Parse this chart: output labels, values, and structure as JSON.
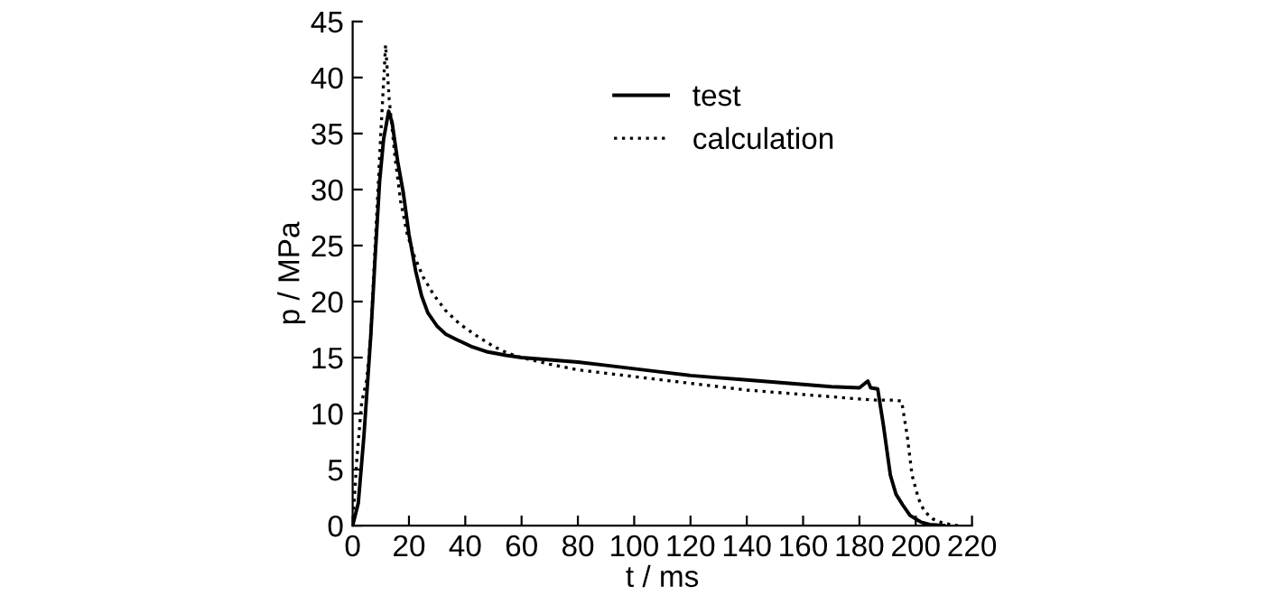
{
  "chart_data": {
    "type": "line",
    "xlabel": "t / ms",
    "ylabel": "p / MPa",
    "xlim": [
      0,
      220
    ],
    "xticks": [
      0,
      20,
      40,
      60,
      80,
      100,
      120,
      140,
      160,
      180,
      200,
      220
    ],
    "ylim": [
      0,
      45
    ],
    "yticks": [
      0,
      5,
      10,
      15,
      20,
      25,
      30,
      35,
      40,
      45
    ],
    "legend": "top",
    "grid": false,
    "series": [
      {
        "name": "test",
        "color": "#000000",
        "line_style": "solid",
        "x": [
          0,
          2,
          4,
          6.4,
          8,
          9.6,
          11,
          12.8,
          14,
          16,
          18,
          20,
          22.4,
          24.5,
          26.7,
          30,
          33,
          37,
          42,
          48,
          54.5,
          60,
          70,
          80,
          90,
          100,
          110,
          120,
          130,
          140,
          150,
          160,
          170,
          180,
          183,
          184,
          186.5,
          188.5,
          191,
          193,
          195.5,
          198,
          202,
          205,
          210
        ],
        "values": [
          0,
          2,
          8,
          16.8,
          24,
          30.8,
          34.5,
          37,
          36,
          32.5,
          29.7,
          26,
          22.7,
          20.5,
          19,
          17.8,
          17.1,
          16.6,
          16,
          15.5,
          15.2,
          15,
          14.8,
          14.6,
          14.3,
          14,
          13.7,
          13.4,
          13.2,
          13,
          12.8,
          12.6,
          12.4,
          12.3,
          12.9,
          12.3,
          12.2,
          9,
          4.5,
          2.8,
          1.8,
          0.9,
          0.3,
          0.1,
          0
        ]
      },
      {
        "name": "calculation",
        "color": "#000000",
        "line_style": "dotted",
        "x": [
          0,
          1.5,
          3.2,
          5,
          6.4,
          8,
          10,
          11.7,
          13,
          15,
          17,
          19.4,
          22,
          25,
          28.8,
          33,
          38,
          43.7,
          50,
          55,
          60,
          70,
          80,
          90,
          100,
          110,
          120,
          130,
          140,
          150,
          160,
          170,
          180,
          186,
          190,
          193,
          195,
          197,
          198.7,
          201,
          203,
          206,
          210,
          215
        ],
        "values": [
          0,
          6,
          11,
          13,
          16.8,
          25,
          35,
          42.9,
          38,
          33,
          29,
          26,
          24,
          22.2,
          20.6,
          19.2,
          18,
          17,
          16,
          15.4,
          15,
          14.4,
          13.9,
          13.6,
          13.3,
          13,
          12.7,
          12.4,
          12.1,
          11.9,
          11.7,
          11.5,
          11.3,
          11.2,
          11.2,
          11.2,
          11.1,
          8,
          4.5,
          2.4,
          1.3,
          0.6,
          0.2,
          0
        ]
      }
    ]
  }
}
